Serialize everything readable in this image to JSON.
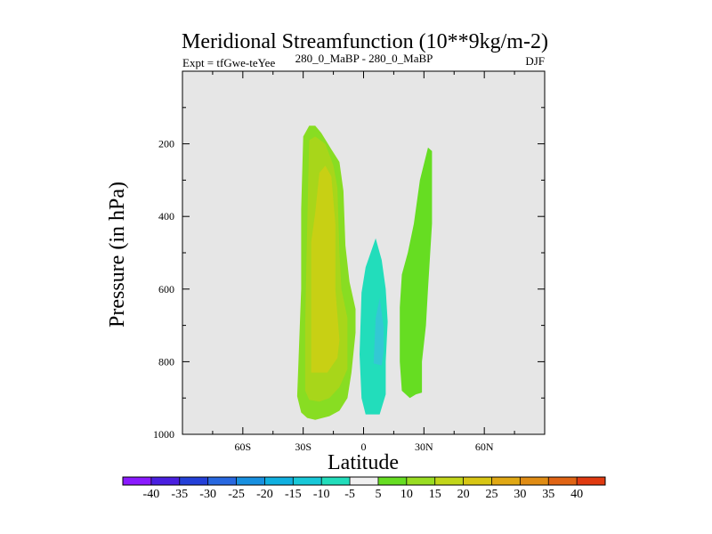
{
  "chart_data": {
    "type": "contour",
    "title": "Meridional Streamfunction (10**9kg/m-2)",
    "left_label": "Expt = tfGwe-teYee",
    "center_label": "280_0_MaBP - 280_0_MaBP",
    "right_label": "DJF",
    "xlabel": "Latitude",
    "ylabel": "Pressure (in hPa)",
    "xlim": [
      -90,
      90
    ],
    "ylim": [
      0,
      1000
    ],
    "y_inverted": true,
    "x_ticks": [
      {
        "value": -60,
        "label": "60S"
      },
      {
        "value": -30,
        "label": "30S"
      },
      {
        "value": 0,
        "label": "0"
      },
      {
        "value": 30,
        "label": "30N"
      },
      {
        "value": 60,
        "label": "60N"
      }
    ],
    "y_ticks": [
      {
        "value": 200,
        "label": "200"
      },
      {
        "value": 400,
        "label": "400"
      },
      {
        "value": 600,
        "label": "600"
      },
      {
        "value": 800,
        "label": "800"
      },
      {
        "value": 1000,
        "label": "1000"
      }
    ],
    "background_color": "#e6e6e6",
    "contour_regions": [
      {
        "name": "sh-cell-10",
        "level": 10,
        "color": "#88dd22",
        "points": [
          [
            -31,
            940
          ],
          [
            -33,
            895
          ],
          [
            -31,
            600
          ],
          [
            -31,
            380
          ],
          [
            -30,
            180
          ],
          [
            -27,
            150
          ],
          [
            -24,
            150
          ],
          [
            -21,
            170
          ],
          [
            -16,
            215
          ],
          [
            -12,
            250
          ],
          [
            -10,
            330
          ],
          [
            -9,
            480
          ],
          [
            -7,
            580
          ],
          [
            -4,
            655
          ],
          [
            -4,
            720
          ],
          [
            -6,
            830
          ],
          [
            -8,
            900
          ],
          [
            -12,
            935
          ],
          [
            -17,
            950
          ],
          [
            -24,
            960
          ],
          [
            -28,
            955
          ]
        ]
      },
      {
        "name": "sh-cell-15",
        "level": 15,
        "color": "#a8d61a",
        "points": [
          [
            -29,
            880
          ],
          [
            -29,
            700
          ],
          [
            -28,
            420
          ],
          [
            -27,
            190
          ],
          [
            -24,
            180
          ],
          [
            -19,
            200
          ],
          [
            -17,
            230
          ],
          [
            -15,
            260
          ],
          [
            -13,
            320
          ],
          [
            -12,
            500
          ],
          [
            -11,
            600
          ],
          [
            -8,
            680
          ],
          [
            -8,
            820
          ],
          [
            -12,
            870
          ],
          [
            -17,
            900
          ],
          [
            -22,
            910
          ],
          [
            -27,
            905
          ]
        ]
      },
      {
        "name": "sh-cell-20",
        "level": 20,
        "color": "#c8d014",
        "points": [
          [
            -26,
            830
          ],
          [
            -26,
            470
          ],
          [
            -24,
            390
          ],
          [
            -22,
            280
          ],
          [
            -19,
            260
          ],
          [
            -16,
            290
          ],
          [
            -14,
            420
          ],
          [
            -14,
            600
          ],
          [
            -13,
            670
          ],
          [
            -12,
            740
          ],
          [
            -13,
            790
          ],
          [
            -18,
            830
          ],
          [
            -23,
            830
          ]
        ]
      },
      {
        "name": "eq-cell-minus5",
        "level": -5,
        "color": "#22ddbb",
        "points": [
          [
            1,
            945
          ],
          [
            -1,
            900
          ],
          [
            -2,
            780
          ],
          [
            -1,
            610
          ],
          [
            1,
            540
          ],
          [
            6,
            460
          ],
          [
            9,
            520
          ],
          [
            11,
            600
          ],
          [
            12,
            690
          ],
          [
            11,
            800
          ],
          [
            11,
            890
          ],
          [
            8,
            945
          ],
          [
            5,
            945
          ]
        ]
      },
      {
        "name": "eq-cell-minus10",
        "level": -10,
        "color": "#33c8d4",
        "points": [
          [
            5,
            805
          ],
          [
            6,
            680
          ],
          [
            8,
            625
          ],
          [
            10,
            705
          ],
          [
            10,
            770
          ],
          [
            9,
            810
          ]
        ]
      },
      {
        "name": "nh-cell-10",
        "level": 10,
        "color": "#66dd22",
        "points": [
          [
            23,
            900
          ],
          [
            19,
            880
          ],
          [
            18,
            800
          ],
          [
            18,
            650
          ],
          [
            19,
            560
          ],
          [
            22,
            500
          ],
          [
            25,
            420
          ],
          [
            28,
            300
          ],
          [
            32,
            210
          ],
          [
            34,
            220
          ],
          [
            34,
            420
          ],
          [
            32,
            600
          ],
          [
            31,
            700
          ],
          [
            29,
            800
          ],
          [
            29,
            885
          ],
          [
            26,
            890
          ]
        ]
      }
    ],
    "colorbar": {
      "levels": [
        -40,
        -35,
        -30,
        -25,
        -20,
        -15,
        -10,
        -5,
        5,
        10,
        15,
        20,
        25,
        30,
        35,
        40
      ],
      "labels": [
        "-40",
        "-35",
        "-30",
        "-25",
        "-20",
        "-15",
        "-10",
        "-5",
        "5",
        "10",
        "15",
        "20",
        "25",
        "30",
        "35",
        "40"
      ],
      "colors": [
        "#8a1aff",
        "#4a1fe0",
        "#2440d8",
        "#2868e0",
        "#1890e0",
        "#10b0e0",
        "#18c8d8",
        "#22ddbb",
        "#f0f0f0",
        "#66dd22",
        "#99dd22",
        "#c2d61a",
        "#d8c614",
        "#e0a814",
        "#e08c14",
        "#e06414",
        "#e03a10"
      ]
    }
  }
}
